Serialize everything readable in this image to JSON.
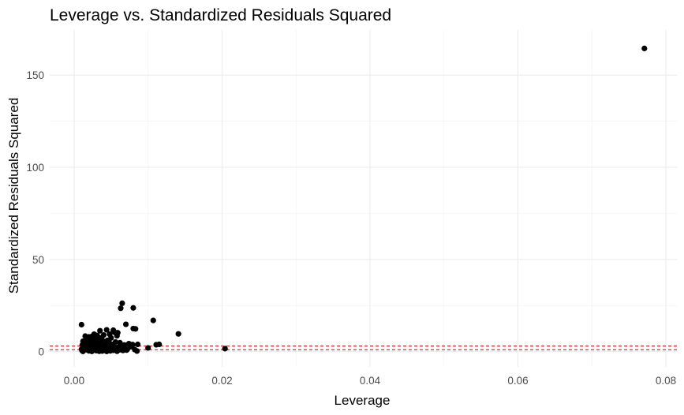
{
  "chart_data": {
    "type": "scatter",
    "title": "Leverage vs. Standardized Residuals Squared",
    "xlabel": "Leverage",
    "ylabel": "Standardized Residuals Squared",
    "xlim": [
      -0.0033,
      0.0816
    ],
    "ylim": [
      -8.3,
      174.5
    ],
    "x_ticks": [
      0.0,
      0.02,
      0.04,
      0.06,
      0.08
    ],
    "x_tick_labels": [
      "0.00",
      "0.02",
      "0.04",
      "0.06",
      "0.08"
    ],
    "y_ticks": [
      0,
      50,
      100,
      150
    ],
    "y_tick_labels": [
      "0",
      "50",
      "100",
      "150"
    ],
    "grid": true,
    "reference_lines": [
      {
        "y": 1.0,
        "color": "#c00000",
        "style": "dashed"
      },
      {
        "y": 3.0,
        "color": "#c00000",
        "style": "dashed"
      }
    ],
    "series": [
      {
        "color": "#000000",
        "points": [
          [
            0.0771,
            164.5
          ],
          [
            0.0065,
            26.2
          ],
          [
            0.0063,
            23.5
          ],
          [
            0.008,
            23.7
          ],
          [
            0.0107,
            16.9
          ],
          [
            0.007,
            14.8
          ],
          [
            0.001,
            14.6
          ],
          [
            0.0141,
            9.6
          ],
          [
            0.008,
            12.5
          ],
          [
            0.0083,
            12.3
          ],
          [
            0.0044,
            11.8
          ],
          [
            0.0035,
            11.3
          ],
          [
            0.0053,
            11.6
          ],
          [
            0.0059,
            10.2
          ],
          [
            0.0055,
            10.4
          ],
          [
            0.0048,
            9.4
          ],
          [
            0.004,
            9.0
          ],
          [
            0.0031,
            8.8
          ],
          [
            0.0027,
            9.4
          ],
          [
            0.0015,
            8.4
          ],
          [
            0.002,
            8.0
          ],
          [
            0.0024,
            8.2
          ],
          [
            0.0034,
            7.6
          ],
          [
            0.0058,
            8.6
          ],
          [
            0.005,
            7.4
          ],
          [
            0.0018,
            6.6
          ],
          [
            0.0026,
            6.9
          ],
          [
            0.0038,
            6.3
          ],
          [
            0.0045,
            6.1
          ],
          [
            0.0012,
            5.6
          ],
          [
            0.0021,
            5.4
          ],
          [
            0.003,
            5.3
          ],
          [
            0.0037,
            5.0
          ],
          [
            0.0056,
            5.2
          ],
          [
            0.0062,
            4.8
          ],
          [
            0.0016,
            4.6
          ],
          [
            0.0025,
            4.4
          ],
          [
            0.0033,
            4.2
          ],
          [
            0.0041,
            4.0
          ],
          [
            0.0052,
            3.9
          ],
          [
            0.0074,
            4.3
          ],
          [
            0.0079,
            3.8
          ],
          [
            0.0086,
            3.9
          ],
          [
            0.0111,
            3.7
          ],
          [
            0.0115,
            3.9
          ],
          [
            0.0068,
            3.6
          ],
          [
            0.0011,
            3.5
          ],
          [
            0.0019,
            3.3
          ],
          [
            0.0028,
            3.2
          ],
          [
            0.0036,
            3.0
          ],
          [
            0.0046,
            3.1
          ],
          [
            0.0054,
            2.9
          ],
          [
            0.0013,
            2.7
          ],
          [
            0.0022,
            2.5
          ],
          [
            0.0032,
            2.4
          ],
          [
            0.0042,
            2.3
          ],
          [
            0.0051,
            2.2
          ],
          [
            0.006,
            2.4
          ],
          [
            0.0067,
            2.1
          ],
          [
            0.0077,
            2.6
          ],
          [
            0.01,
            2.0
          ],
          [
            0.0014,
            1.8
          ],
          [
            0.0023,
            1.7
          ],
          [
            0.0029,
            1.9
          ],
          [
            0.0039,
            1.6
          ],
          [
            0.0047,
            1.5
          ],
          [
            0.0057,
            1.4
          ],
          [
            0.0204,
            1.6
          ],
          [
            0.001,
            1.2
          ],
          [
            0.0017,
            1.0
          ],
          [
            0.0026,
            0.9
          ],
          [
            0.0035,
            1.1
          ],
          [
            0.0043,
            0.8
          ],
          [
            0.0053,
            0.7
          ],
          [
            0.0061,
            0.9
          ],
          [
            0.0072,
            1.3
          ],
          [
            0.0011,
            0.5
          ],
          [
            0.002,
            0.4
          ],
          [
            0.003,
            0.5
          ],
          [
            0.0038,
            0.3
          ],
          [
            0.0049,
            0.4
          ],
          [
            0.0058,
            0.2
          ],
          [
            0.0066,
            0.6
          ],
          [
            0.0085,
            0.3
          ],
          [
            0.0012,
            0.1
          ],
          [
            0.0024,
            0.1
          ],
          [
            0.0034,
            0.2
          ],
          [
            0.0044,
            0.1
          ],
          [
            0.0016,
            6.0
          ],
          [
            0.0018,
            7.2
          ],
          [
            0.0022,
            3.8
          ],
          [
            0.0027,
            4.9
          ],
          [
            0.0032,
            6.5
          ],
          [
            0.0036,
            2.8
          ],
          [
            0.004,
            1.3
          ],
          [
            0.0047,
            5.7
          ],
          [
            0.005,
            2.7
          ],
          [
            0.0064,
            3.3
          ],
          [
            0.0071,
            0.8
          ],
          [
            0.0082,
            1.1
          ]
        ]
      }
    ]
  }
}
